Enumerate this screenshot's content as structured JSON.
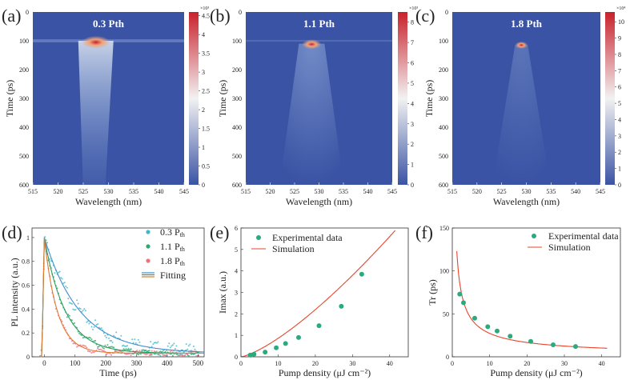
{
  "colors": {
    "map_low": "#3a53a4",
    "map_mid": "#f2f2f2",
    "map_high": "#c8222c",
    "series_03": "#3f8fd0",
    "series_11": "#2e9a5c",
    "series_18": "#e07a30",
    "marker_03": "#3fb8c8",
    "marker_11": "#2ea870",
    "marker_18": "#f07080",
    "fit_line": "#e8452c",
    "exp_marker": "#2bab7c"
  },
  "chart_data": [
    {
      "panel": "(a)",
      "type": "heatmap",
      "label_text": "0.3 Pth",
      "xlabel": "Wavelength (nm)",
      "ylabel": "Time (ps)",
      "xlim": [
        515,
        545
      ],
      "ylim": [
        0,
        600
      ],
      "x_ticks": [
        "515",
        "520",
        "525",
        "530",
        "535",
        "540",
        "545"
      ],
      "y_ticks": [
        "0",
        "100",
        "200",
        "300",
        "400",
        "500",
        "600"
      ],
      "peak": {
        "wavelength": 527.5,
        "time": 105
      },
      "colorbar": {
        "exponent": "×10³",
        "max": 4.6,
        "ticks": [
          "0",
          "0.5",
          "1",
          "1.5",
          "2",
          "2.5",
          "3",
          "3.5",
          "4",
          "4.5"
        ]
      }
    },
    {
      "panel": "(b)",
      "type": "heatmap",
      "label_text": "1.1 Pth",
      "xlabel": "Wavelength (nm)",
      "ylabel": "Time (ps)",
      "xlim": [
        515,
        545
      ],
      "ylim": [
        0,
        600
      ],
      "x_ticks": [
        "515",
        "520",
        "525",
        "530",
        "535",
        "540",
        "545"
      ],
      "y_ticks": [
        "0",
        "100",
        "200",
        "300",
        "400",
        "500",
        "600"
      ],
      "peak": {
        "wavelength": 528.5,
        "time": 112
      },
      "colorbar": {
        "exponent": "×10³",
        "max": 8.5,
        "ticks": [
          "0",
          "1",
          "2",
          "3",
          "4",
          "5",
          "6",
          "7",
          "8"
        ]
      }
    },
    {
      "panel": "(c)",
      "type": "heatmap",
      "label_text": "1.8 Pth",
      "xlabel": "Wavelength (nm)",
      "ylabel": "Time (ps)",
      "xlim": [
        515,
        545
      ],
      "ylim": [
        0,
        600
      ],
      "x_ticks": [
        "515",
        "520",
        "525",
        "530",
        "535",
        "540",
        "545"
      ],
      "y_ticks": [
        "0",
        "100",
        "200",
        "300",
        "400",
        "500",
        "600"
      ],
      "peak": {
        "wavelength": 529,
        "time": 115
      },
      "colorbar": {
        "exponent": "×10⁴",
        "max": 10.6,
        "ticks": [
          "0",
          "1",
          "2",
          "3",
          "4",
          "5",
          "6",
          "7",
          "8",
          "9",
          "10"
        ]
      }
    },
    {
      "panel": "(d)",
      "type": "scatter",
      "xlabel": "Time (ps)",
      "ylabel": "PL intensity (a.u.)",
      "xlim": [
        -40,
        520
      ],
      "ylim": [
        0,
        1.08
      ],
      "x_ticks": [
        "0",
        "100",
        "200",
        "300",
        "400",
        "500"
      ],
      "y_ticks": [
        "0",
        "0.2",
        "0.4",
        "0.6",
        "0.8",
        "1"
      ],
      "legend": [
        "0.3 P",
        "1.1 P",
        "1.8 P",
        "Fitting"
      ],
      "legend_sub": "th",
      "series": [
        {
          "name": "0.3 Pth",
          "decay_ps": 115
        },
        {
          "name": "1.1 Pth",
          "decay_ps": 68
        },
        {
          "name": "1.8 Pth",
          "decay_ps": 42
        }
      ]
    },
    {
      "panel": "(e)",
      "type": "scatter",
      "xlabel": "Pump density (μJ cm⁻²)",
      "ylabel": "Imax (a.u.)",
      "xlim": [
        0,
        45
      ],
      "ylim": [
        0,
        6
      ],
      "x_ticks": [
        "0",
        "10",
        "20",
        "30",
        "40"
      ],
      "y_ticks": [
        "0",
        "1",
        "2",
        "3",
        "4",
        "5",
        "6"
      ],
      "legend": [
        "Experimental data",
        "Simulation"
      ],
      "x": [
        2.5,
        3.5,
        6.5,
        9.5,
        12,
        15.5,
        21,
        27,
        32.5
      ],
      "y": [
        0.08,
        0.12,
        0.22,
        0.42,
        0.62,
        0.9,
        1.45,
        2.35,
        3.85
      ],
      "fit": {
        "type": "power",
        "a": 0.0385,
        "b": 1.35,
        "x_range": [
          0,
          41.5
        ]
      }
    },
    {
      "panel": "(f)",
      "type": "scatter",
      "xlabel": "Pump density (μJ cm⁻²)",
      "ylabel": "Tr (ps)",
      "xlim": [
        0,
        45
      ],
      "ylim": [
        0,
        150
      ],
      "x_ticks": [
        "0",
        "10",
        "20",
        "30",
        "40"
      ],
      "y_ticks": [
        "0",
        "50",
        "100",
        "150"
      ],
      "legend": [
        "Experimental data",
        "Simulation"
      ],
      "x": [
        2,
        3,
        6,
        9.5,
        12,
        15.5,
        21,
        27,
        33
      ],
      "y": [
        73,
        63,
        45,
        35,
        30,
        24,
        18,
        14,
        12
      ],
      "fit": {
        "type": "power",
        "a": 140,
        "b": 0.71,
        "x_range": [
          1.2,
          41.5
        ]
      }
    }
  ]
}
